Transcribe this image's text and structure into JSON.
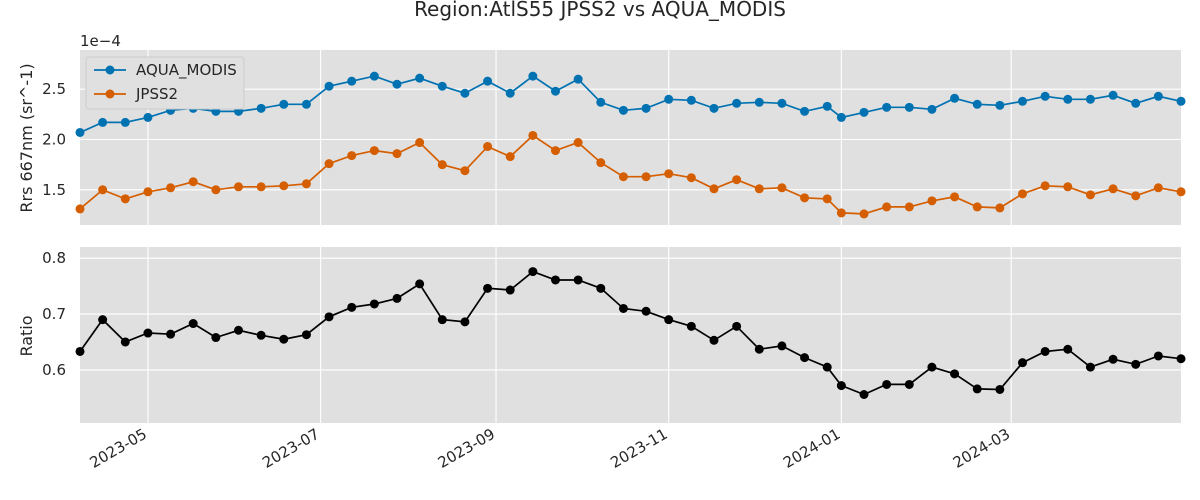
{
  "chart_data": {
    "type": "line",
    "title": "Region:AtlS55 JPSS2 vs AQUA_MODIS",
    "grid": true,
    "x_tick_labels": [
      "2023-05",
      "2023-07",
      "2023-09",
      "2023-11",
      "2024-01",
      "2024-03"
    ],
    "x_tick_dates": [
      "2023-05-01",
      "2023-07-01",
      "2023-09-01",
      "2023-11-01",
      "2024-01-01",
      "2024-03-01"
    ],
    "x_range": [
      "2023-04-07",
      "2024-04-30"
    ],
    "x": [
      "2023-04-07",
      "2023-04-15",
      "2023-04-23",
      "2023-05-01",
      "2023-05-09",
      "2023-05-17",
      "2023-05-25",
      "2023-06-02",
      "2023-06-10",
      "2023-06-18",
      "2023-06-26",
      "2023-07-04",
      "2023-07-12",
      "2023-07-20",
      "2023-07-28",
      "2023-08-05",
      "2023-08-13",
      "2023-08-21",
      "2023-08-29",
      "2023-09-06",
      "2023-09-14",
      "2023-09-22",
      "2023-09-30",
      "2023-10-08",
      "2023-10-16",
      "2023-10-24",
      "2023-11-01",
      "2023-11-09",
      "2023-11-17",
      "2023-11-25",
      "2023-12-03",
      "2023-12-11",
      "2023-12-19",
      "2023-12-27",
      "2024-01-01",
      "2024-01-09",
      "2024-01-17",
      "2024-01-25",
      "2024-02-02",
      "2024-02-10",
      "2024-02-18",
      "2024-02-26",
      "2024-03-05",
      "2024-03-13",
      "2024-03-21",
      "2024-03-29",
      "2024-04-06",
      "2024-04-14",
      "2024-04-22",
      "2024-04-30"
    ],
    "panels": [
      {
        "ylabel": "Rrs 667nm (sr^-1)",
        "scale_label": "1e−4",
        "ylim": [
          1.15,
          2.89
        ],
        "yticks": [
          1.5,
          2.0,
          2.5
        ],
        "ytick_labels": [
          "1.5",
          "2.0",
          "2.5"
        ],
        "legend": "top-left",
        "series": [
          {
            "name": "AQUA_MODIS",
            "color": "#0072B2",
            "values": [
              2.07,
              2.17,
              2.17,
              2.22,
              2.29,
              2.31,
              2.28,
              2.28,
              2.31,
              2.35,
              2.35,
              2.53,
              2.58,
              2.63,
              2.55,
              2.61,
              2.53,
              2.46,
              2.58,
              2.46,
              2.63,
              2.48,
              2.6,
              2.37,
              2.29,
              2.31,
              2.4,
              2.39,
              2.31,
              2.36,
              2.37,
              2.36,
              2.28,
              2.33,
              2.22,
              2.27,
              2.32,
              2.32,
              2.3,
              2.41,
              2.35,
              2.34,
              2.38,
              2.43,
              2.4,
              2.4,
              2.44,
              2.36,
              2.43,
              2.38
            ]
          },
          {
            "name": "JPSS2",
            "color": "#D55E00",
            "values": [
              1.31,
              1.5,
              1.41,
              1.48,
              1.52,
              1.58,
              1.5,
              1.53,
              1.53,
              1.54,
              1.56,
              1.76,
              1.84,
              1.89,
              1.86,
              1.97,
              1.75,
              1.69,
              1.93,
              1.83,
              2.04,
              1.89,
              1.97,
              1.77,
              1.63,
              1.63,
              1.66,
              1.62,
              1.51,
              1.6,
              1.51,
              1.52,
              1.42,
              1.41,
              1.27,
              1.26,
              1.33,
              1.33,
              1.39,
              1.43,
              1.33,
              1.32,
              1.46,
              1.54,
              1.53,
              1.45,
              1.51,
              1.44,
              1.52,
              1.48
            ]
          }
        ]
      },
      {
        "ylabel": "Ratio",
        "ylim": [
          0.505,
          0.82
        ],
        "yticks": [
          0.6,
          0.7,
          0.8
        ],
        "ytick_labels": [
          "0.6",
          "0.7",
          "0.8"
        ],
        "series": [
          {
            "color": "#000000",
            "values": [
              0.633,
              0.69,
              0.65,
              0.666,
              0.664,
              0.683,
              0.658,
              0.671,
              0.662,
              0.655,
              0.663,
              0.695,
              0.712,
              0.718,
              0.728,
              0.754,
              0.69,
              0.686,
              0.746,
              0.743,
              0.776,
              0.761,
              0.761,
              0.746,
              0.71,
              0.705,
              0.69,
              0.678,
              0.653,
              0.678,
              0.637,
              0.643,
              0.622,
              0.605,
              0.572,
              0.556,
              0.574,
              0.574,
              0.605,
              0.593,
              0.566,
              0.565,
              0.613,
              0.633,
              0.637,
              0.605,
              0.619,
              0.61,
              0.625,
              0.62
            ]
          }
        ]
      }
    ]
  }
}
